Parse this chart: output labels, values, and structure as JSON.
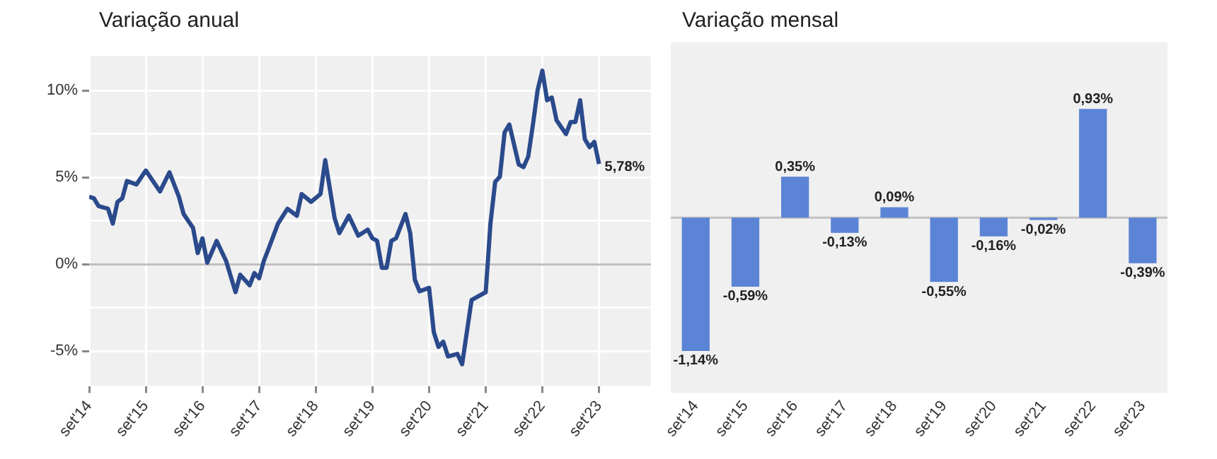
{
  "chart_data": [
    {
      "type": "line",
      "title": "Variação anual",
      "x": [
        "2014-09",
        "2014-10",
        "2014-11",
        "2015-01",
        "2015-02",
        "2015-03",
        "2015-04",
        "2015-05",
        "2015-07",
        "2015-09",
        "2015-12",
        "2016-02",
        "2016-04",
        "2016-05",
        "2016-07",
        "2016-08",
        "2016-09",
        "2016-10",
        "2016-12",
        "2017-02",
        "2017-04",
        "2017-05",
        "2017-07",
        "2017-08",
        "2017-09",
        "2017-10",
        "2017-11",
        "2018-01",
        "2018-03",
        "2018-05",
        "2018-06",
        "2018-08",
        "2018-10",
        "2018-11",
        "2019-01",
        "2019-02",
        "2019-04",
        "2019-06",
        "2019-08",
        "2019-09",
        "2019-10",
        "2019-11",
        "2019-12",
        "2020-01",
        "2020-02",
        "2020-04",
        "2020-05",
        "2020-06",
        "2020-07",
        "2020-09",
        "2020-10",
        "2020-11",
        "2020-12",
        "2021-01",
        "2021-03",
        "2021-04",
        "2021-06",
        "2021-07",
        "2021-09",
        "2021-10",
        "2021-11",
        "2021-12",
        "2022-01",
        "2022-02",
        "2022-03",
        "2022-04",
        "2022-05",
        "2022-06",
        "2022-07",
        "2022-08",
        "2022-09",
        "2022-10",
        "2022-11",
        "2022-12",
        "2023-02",
        "2023-03",
        "2023-04",
        "2023-05",
        "2023-06",
        "2023-07",
        "2023-08",
        "2023-09"
      ],
      "series": [
        {
          "color": "#2b4a8c",
          "values": [
            3.9,
            3.8,
            3.35,
            3.2,
            2.35,
            3.6,
            3.8,
            4.8,
            4.6,
            5.4,
            4.2,
            5.3,
            3.9,
            2.9,
            2.1,
            0.65,
            1.5,
            0.1,
            1.35,
            0.2,
            -1.6,
            -0.6,
            -1.2,
            -0.5,
            -0.8,
            0.2,
            0.9,
            2.35,
            3.2,
            2.8,
            4.05,
            3.6,
            4.05,
            6.0,
            2.65,
            1.8,
            2.8,
            1.65,
            2.0,
            1.5,
            1.35,
            -0.2,
            -0.2,
            1.35,
            1.5,
            2.9,
            1.8,
            -0.9,
            -1.55,
            -1.35,
            -3.9,
            -4.75,
            -4.45,
            -5.3,
            -5.15,
            -5.75,
            -2.05,
            -1.9,
            -1.6,
            2.35,
            4.75,
            5.05,
            7.6,
            8.05,
            6.9,
            5.75,
            5.6,
            6.2,
            8.05,
            10.05,
            11.15,
            9.45,
            9.6,
            8.3,
            7.5,
            8.2,
            8.2,
            9.45,
            7.2,
            6.75,
            7.05,
            5.78
          ]
        }
      ],
      "xlim": [
        "2014-09",
        "2024-08"
      ],
      "xticks": [
        {
          "value": "2014-09",
          "label": "set'14"
        },
        {
          "value": "2015-09",
          "label": "set'15"
        },
        {
          "value": "2016-09",
          "label": "set'16"
        },
        {
          "value": "2017-09",
          "label": "set'17"
        },
        {
          "value": "2018-09",
          "label": "set'18"
        },
        {
          "value": "2019-09",
          "label": "set'19"
        },
        {
          "value": "2020-09",
          "label": "set'20"
        },
        {
          "value": "2021-09",
          "label": "set'21"
        },
        {
          "value": "2022-09",
          "label": "set'22"
        },
        {
          "value": "2023-09",
          "label": "set'23"
        }
      ],
      "ylim": [
        -7,
        12
      ],
      "yticks": [
        {
          "value": -5,
          "label": "-5%"
        },
        {
          "value": -2.5,
          "label": null
        },
        {
          "value": 0,
          "label": "0%"
        },
        {
          "value": 2.5,
          "label": null
        },
        {
          "value": 5,
          "label": "5%"
        },
        {
          "value": 7.5,
          "label": null
        },
        {
          "value": 10,
          "label": "10%"
        }
      ],
      "grid": true,
      "legend": false,
      "marker": "none",
      "line_style": "solid",
      "ref_lines": [
        {
          "axis": "y",
          "value": 0,
          "color": "#c0c0c0"
        }
      ],
      "annotations": [
        {
          "text": "5,78%",
          "x": "2023-09",
          "y": 5.78
        }
      ]
    },
    {
      "type": "bar",
      "title": "Variação mensal",
      "categories": [
        "set'14",
        "set'15",
        "set'16",
        "set'17",
        "set'18",
        "set'19",
        "set'20",
        "set'21",
        "set'22",
        "set'23"
      ],
      "values": [
        -1.14,
        -0.59,
        0.35,
        -0.13,
        0.09,
        -0.55,
        -0.16,
        -0.02,
        0.93,
        -0.39
      ],
      "value_labels": [
        "-1,14%",
        "-0,59%",
        "0,35%",
        "-0,13%",
        "0,09%",
        "-0,55%",
        "-0,16%",
        "-0,02%",
        "0,93%",
        "-0,39%"
      ],
      "color": "#5b84d6",
      "grid": false,
      "legend": false,
      "ref_lines": [
        {
          "axis": "y",
          "value": 0,
          "color": "#c0c0c0"
        }
      ]
    }
  ]
}
